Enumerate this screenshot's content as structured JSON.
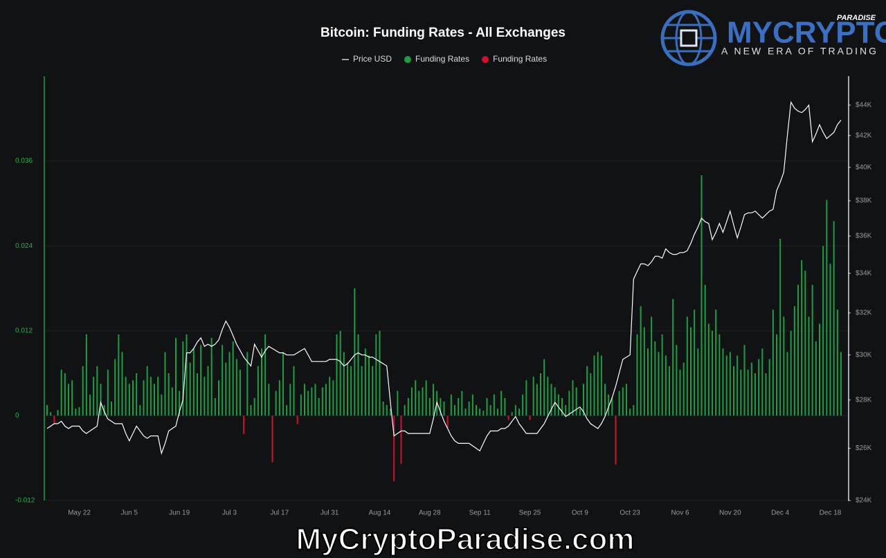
{
  "chart_data": {
    "type": "bar",
    "title": "Bitcoin: Funding Rates - All Exchanges",
    "categories": [
      null,
      null,
      null,
      null,
      null,
      null,
      null,
      null,
      null,
      "May 22",
      null,
      null,
      null,
      null,
      null,
      null,
      null,
      null,
      null,
      null,
      null,
      null,
      null,
      "Jun 5",
      null,
      null,
      null,
      null,
      null,
      null,
      null,
      null,
      null,
      null,
      null,
      null,
      null,
      "Jun 19",
      null,
      null,
      null,
      null,
      null,
      null,
      null,
      null,
      null,
      null,
      null,
      null,
      null,
      "Jul 3",
      null,
      null,
      null,
      null,
      null,
      null,
      null,
      null,
      null,
      null,
      null,
      null,
      null,
      "Jul 17",
      null,
      null,
      null,
      null,
      null,
      null,
      null,
      null,
      null,
      null,
      null,
      null,
      null,
      "Jul 31",
      null,
      null,
      null,
      null,
      null,
      null,
      null,
      null,
      null,
      null,
      null,
      null,
      null,
      "Aug 14",
      null,
      null,
      null,
      null,
      null,
      null,
      null,
      null,
      null,
      null,
      null,
      null,
      null,
      "Aug 28",
      null,
      null,
      null,
      null,
      null,
      null,
      null,
      null,
      null,
      null,
      null,
      null,
      null,
      "Sep 11",
      null,
      null,
      null,
      null,
      null,
      null,
      null,
      null,
      null,
      null,
      null,
      null,
      null,
      "Sep 25",
      null,
      null,
      null,
      null,
      null,
      null,
      null,
      null,
      null,
      null,
      null,
      null,
      null,
      "Oct 9",
      null,
      null,
      null,
      null,
      null,
      null,
      null,
      null,
      null,
      null,
      null,
      null,
      null,
      "Oct 23",
      null,
      null,
      null,
      null,
      null,
      null,
      null,
      null,
      null,
      null,
      null,
      null,
      null,
      "Nov 6",
      null,
      null,
      null,
      null,
      null,
      null,
      null,
      null,
      null,
      null,
      null,
      null,
      null,
      "Nov 20",
      null,
      null,
      null,
      null,
      null,
      null,
      null,
      null,
      null,
      null,
      null,
      null,
      null,
      "Dec 4",
      null,
      null,
      null,
      null,
      null,
      null,
      null,
      null,
      null,
      null,
      null,
      null,
      null,
      "Dec 18",
      null,
      null,
      null
    ],
    "series": [
      {
        "name": "Price USD",
        "type": "line",
        "axis": "y2",
        "color": "#ffffff",
        "values": [
          26800,
          26900,
          27000,
          27000,
          27100,
          26900,
          26800,
          26900,
          26900,
          26900,
          26700,
          26600,
          26700,
          26800,
          26900,
          27900,
          27500,
          27200,
          27100,
          27000,
          27000,
          27000,
          26600,
          26300,
          26600,
          26900,
          26700,
          26500,
          26400,
          26500,
          26500,
          26500,
          25800,
          26200,
          26700,
          26800,
          26900,
          27500,
          28000,
          30100,
          30100,
          30300,
          30600,
          30800,
          30400,
          30500,
          30400,
          30500,
          30700,
          31200,
          31600,
          31300,
          30900,
          30500,
          30200,
          29900,
          29700,
          29500,
          30500,
          30200,
          29900,
          30200,
          30400,
          30300,
          30200,
          30100,
          30100,
          30000,
          30000,
          30000,
          30100,
          30200,
          30300,
          30000,
          29700,
          29700,
          29700,
          29700,
          29700,
          29800,
          29800,
          29800,
          29700,
          29500,
          29600,
          29800,
          30000,
          30100,
          30000,
          30000,
          29900,
          29900,
          29800,
          29700,
          29600,
          29500,
          27900,
          26500,
          26600,
          26700,
          26700,
          26600,
          26600,
          26600,
          26600,
          26600,
          26600,
          26600,
          27200,
          27900,
          27500,
          27100,
          26800,
          26500,
          26300,
          26200,
          26200,
          26200,
          26200,
          26100,
          26000,
          25900,
          26200,
          26500,
          26700,
          26700,
          26700,
          26800,
          26800,
          26900,
          27100,
          27300,
          27000,
          26800,
          26600,
          26600,
          26600,
          26600,
          26800,
          27000,
          27300,
          27600,
          27900,
          27700,
          27500,
          27300,
          27400,
          27500,
          27600,
          27700,
          27500,
          27200,
          27000,
          26900,
          26800,
          27000,
          27300,
          27700,
          28100,
          28600,
          29200,
          29800,
          29900,
          30000,
          33700,
          34100,
          34500,
          34500,
          34400,
          34600,
          34900,
          34900,
          34800,
          35300,
          35100,
          35000,
          35000,
          35100,
          35100,
          35200,
          35600,
          36100,
          36500,
          37000,
          36800,
          36700,
          35800,
          36200,
          36700,
          36200,
          36800,
          37400,
          36600,
          35900,
          36500,
          37200,
          37300,
          37300,
          37400,
          37200,
          37000,
          37200,
          37400,
          37500,
          38600,
          39100,
          39700,
          42000,
          44200,
          43800,
          43600,
          43500,
          43700,
          44000,
          41600,
          42100,
          42700,
          42200,
          41800,
          42000,
          42200,
          42700,
          43000
        ]
      },
      {
        "name": "Funding Rates",
        "type": "bar",
        "color": "#1f9d45",
        "values": [
          0.0015,
          0.0005,
          null,
          0.0008,
          0.0065,
          0.006,
          0.0045,
          0.005,
          0.001,
          0.0012,
          0.007,
          0.0115,
          0.003,
          0.0055,
          0.007,
          0.0045,
          0.0015,
          0.0065,
          0.002,
          0.008,
          0.0115,
          0.009,
          0.0055,
          0.0045,
          0.005,
          0.006,
          0.0015,
          0.005,
          0.007,
          0.0055,
          0.0045,
          0.0055,
          0.003,
          0.009,
          0.006,
          0.004,
          0.011,
          0.0035,
          0.0105,
          0.0115,
          0.0075,
          0.0095,
          0.006,
          0.01,
          0.0055,
          0.007,
          0.011,
          0.0025,
          0.005,
          0.01,
          0.0075,
          0.009,
          0.0105,
          0.008,
          0.0065,
          null,
          0.009,
          0.0015,
          0.0025,
          0.007,
          0.0095,
          0.0115,
          0.0045,
          null,
          0.0035,
          0.005,
          0.009,
          0.0015,
          0.0045,
          0.007,
          null,
          0.003,
          0.0045,
          0.0035,
          0.004,
          0.0045,
          0.0025,
          0.004,
          0.0045,
          0.0055,
          0.005,
          0.0115,
          0.012,
          0.009,
          0.0075,
          0.007,
          0.018,
          0.0115,
          0.007,
          0.0095,
          0.0085,
          0.007,
          0.0115,
          0.012,
          0.002,
          0.0015,
          0.001,
          null,
          0.0035,
          null,
          0.0015,
          0.0025,
          0.004,
          0.005,
          0.0035,
          0.004,
          0.005,
          0.0025,
          0.0045,
          0.0035,
          0.0025,
          0.002,
          null,
          0.003,
          0.0015,
          0.0025,
          0.0035,
          0.001,
          0.002,
          0.003,
          0.0015,
          0.001,
          0.0007,
          0.0025,
          0.0015,
          0.003,
          0.001,
          0.0035,
          0.0025,
          null,
          0.0005,
          0.0015,
          0.001,
          0.003,
          0.005,
          null,
          0.0055,
          0.0045,
          0.006,
          0.008,
          0.0055,
          0.0045,
          0.004,
          0.003,
          0.0025,
          0.0015,
          0.0035,
          0.005,
          0.004,
          0.001,
          0.0045,
          0.007,
          0.006,
          0.0085,
          0.009,
          0.0085,
          0.0045,
          0.003,
          0.0025,
          null,
          0.0035,
          0.004,
          0.0045,
          0.001,
          0.0015,
          0.0115,
          0.0155,
          0.0125,
          0.0095,
          0.014,
          0.0105,
          0.009,
          0.0115,
          0.0085,
          0.007,
          0.0165,
          0.01,
          0.0065,
          0.0075,
          0.014,
          0.0125,
          0.015,
          0.0095,
          0.034,
          0.0185,
          0.013,
          0.012,
          0.015,
          0.0115,
          0.0095,
          0.0085,
          0.009,
          0.007,
          0.0085,
          0.0065,
          0.01,
          0.0065,
          0.0075,
          0.006,
          0.008,
          0.0095,
          0.006,
          0.008,
          0.015,
          0.0115,
          0.025,
          0.014,
          0.009,
          0.012,
          0.0155,
          0.0185,
          0.022,
          0.0205,
          0.014,
          0.0185,
          0.0105,
          0.013,
          0.024,
          0.0305,
          0.0215,
          0.0275,
          0.015,
          0.009
        ]
      },
      {
        "name": "Funding Rates",
        "type": "bar",
        "color": "#d3112e",
        "values": [
          null,
          null,
          -0.0011,
          null,
          null,
          null,
          null,
          null,
          null,
          null,
          null,
          null,
          null,
          null,
          null,
          null,
          null,
          null,
          null,
          null,
          null,
          null,
          null,
          null,
          null,
          null,
          null,
          null,
          null,
          null,
          null,
          null,
          null,
          null,
          null,
          null,
          null,
          null,
          null,
          null,
          null,
          null,
          null,
          null,
          null,
          null,
          null,
          null,
          null,
          null,
          null,
          null,
          null,
          null,
          null,
          -0.0026,
          null,
          null,
          null,
          null,
          null,
          null,
          null,
          -0.0066,
          null,
          null,
          null,
          null,
          null,
          null,
          -0.0012,
          null,
          null,
          null,
          null,
          null,
          null,
          null,
          null,
          null,
          null,
          null,
          null,
          null,
          null,
          null,
          null,
          null,
          null,
          null,
          null,
          null,
          null,
          null,
          null,
          null,
          null,
          -0.0093,
          null,
          -0.0068,
          null,
          null,
          null,
          null,
          null,
          null,
          null,
          null,
          null,
          null,
          null,
          null,
          -0.0018,
          null,
          null,
          null,
          null,
          null,
          null,
          null,
          null,
          null,
          null,
          null,
          null,
          null,
          null,
          null,
          null,
          -0.0006,
          null,
          null,
          null,
          null,
          null,
          -0.0006,
          null,
          null,
          null,
          null,
          null,
          null,
          null,
          null,
          null,
          null,
          null,
          null,
          null,
          null,
          null,
          null,
          null,
          null,
          null,
          null,
          null,
          null,
          null,
          -0.0069,
          null,
          null,
          null,
          null,
          null,
          null,
          null,
          null,
          null,
          null,
          null,
          null,
          null,
          null,
          null,
          null,
          null,
          null,
          null,
          null,
          null,
          null,
          null,
          null,
          null,
          null,
          null,
          null,
          null,
          null,
          null,
          null,
          null,
          null,
          null,
          null,
          null,
          null,
          null,
          null,
          null,
          null,
          null,
          null,
          null,
          null,
          null,
          null,
          null,
          null,
          null,
          null,
          null,
          null,
          null,
          null,
          null,
          null,
          null,
          null,
          null,
          null,
          null
        ]
      }
    ],
    "ylim": [
      -0.012,
      0.048
    ],
    "yticks": [
      -0.012,
      0,
      0.012,
      0.024,
      0.036
    ],
    "y2lim": [
      24000,
      46000
    ],
    "y2log": true,
    "y2ticks": [
      {
        "value": 24000,
        "label": "$24K"
      },
      {
        "value": 26000,
        "label": "$26K"
      },
      {
        "value": 28000,
        "label": "$28K"
      },
      {
        "value": 30000,
        "label": "$30K"
      },
      {
        "value": 32000,
        "label": "$32K"
      },
      {
        "value": 34000,
        "label": "$34K"
      },
      {
        "value": 36000,
        "label": "$36K"
      },
      {
        "value": 38000,
        "label": "$38K"
      },
      {
        "value": 40000,
        "label": "$40K"
      },
      {
        "value": 42000,
        "label": "$42K"
      },
      {
        "value": 44000,
        "label": "$44K"
      }
    ],
    "grid": true,
    "legend": "top"
  },
  "branding": {
    "brand": "MYCRYPTO",
    "brand_tag": "PARADISE",
    "tagline": "A NEW ERA OF TRADING",
    "watermark": "MyCryptoParadise.com"
  }
}
